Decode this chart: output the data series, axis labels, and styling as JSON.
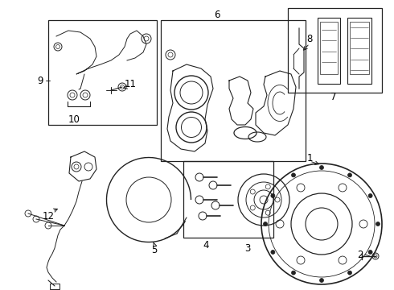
{
  "bg_color": "#ffffff",
  "line_color": "#222222",
  "box_color": "#222222",
  "label_color": "#000000",
  "fig_width": 4.9,
  "fig_height": 3.6,
  "dpi": 100
}
